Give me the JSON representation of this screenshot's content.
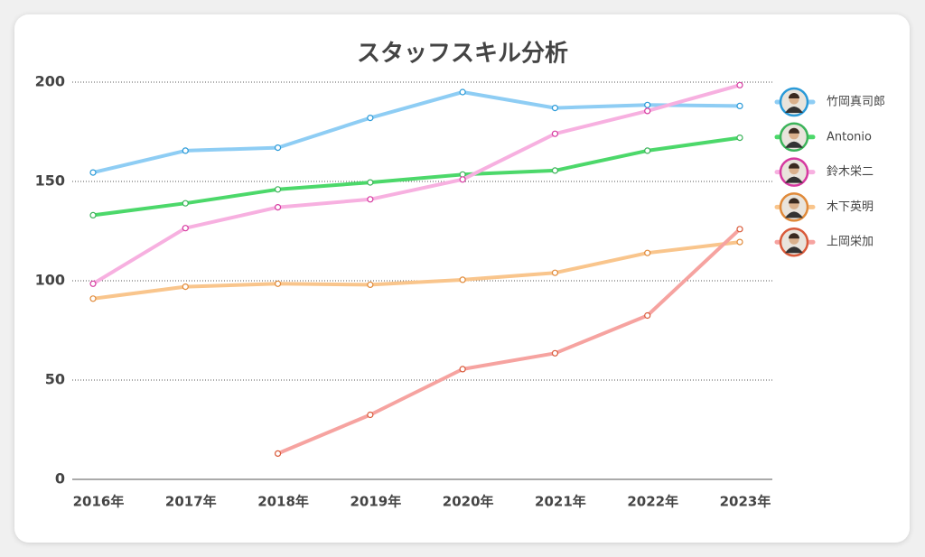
{
  "chart_data": {
    "type": "line",
    "title": "スタッフスキル分析",
    "categories": [
      "2016年",
      "2017年",
      "2018年",
      "2019年",
      "2020年",
      "2021年",
      "2022年",
      "2023年"
    ],
    "ylim": [
      0,
      200
    ],
    "yticks": [
      0,
      50,
      100,
      150,
      200
    ],
    "grid": true,
    "legend": "right",
    "series": [
      {
        "name": "竹岡真司郎",
        "color": "#8ecdf4",
        "avatar_color": "#2a9ad8",
        "values": [
          154.5,
          165.5,
          167,
          182,
          195,
          187,
          188.5,
          188
        ]
      },
      {
        "name": "Antonio",
        "color": "#4cd86a",
        "avatar_color": "#3cb35a",
        "values": [
          133,
          139,
          146,
          149.5,
          153.5,
          155.5,
          165.5,
          172
        ]
      },
      {
        "name": "鈴木栄二",
        "color": "#f7b0e0",
        "avatar_color": "#d63aa0",
        "values": [
          98.5,
          126.5,
          137,
          141,
          151,
          174,
          185.5,
          198.5
        ]
      },
      {
        "name": "木下英明",
        "color": "#f9c58c",
        "avatar_color": "#e08a3a",
        "values": [
          91,
          97,
          98.5,
          98,
          100.5,
          104,
          114,
          119.5
        ]
      },
      {
        "name": "上岡栄加",
        "color": "#f6a3a0",
        "avatar_color": "#d95a3a",
        "values": [
          null,
          null,
          13,
          32.5,
          55.5,
          63.5,
          82.5,
          126
        ]
      }
    ]
  }
}
